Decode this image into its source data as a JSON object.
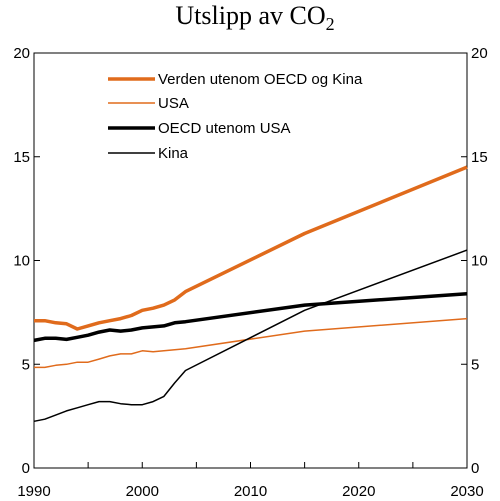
{
  "chart_data": {
    "type": "line",
    "title": "Utslipp av CO",
    "title_subscript": "2",
    "xlabel": "",
    "ylabel": "",
    "xlim": [
      1990,
      2030
    ],
    "ylim": [
      0,
      20
    ],
    "x_ticks": [
      1990,
      2000,
      2010,
      2020,
      2030
    ],
    "y_ticks": [
      0,
      5,
      10,
      15,
      20
    ],
    "grid": false,
    "legend_position": "top-left",
    "series": [
      {
        "name": "Verden utenom OECD og Kina",
        "color": "#e06b1c",
        "weight": "thick",
        "points": [
          [
            1990,
            7.1
          ],
          [
            1991,
            7.1
          ],
          [
            1992,
            7.0
          ],
          [
            1993,
            6.95
          ],
          [
            1994,
            6.7
          ],
          [
            1995,
            6.85
          ],
          [
            1996,
            7.0
          ],
          [
            1997,
            7.1
          ],
          [
            1998,
            7.2
          ],
          [
            1999,
            7.35
          ],
          [
            2000,
            7.6
          ],
          [
            2001,
            7.7
          ],
          [
            2002,
            7.85
          ],
          [
            2003,
            8.1
          ],
          [
            2004,
            8.5
          ],
          [
            2015,
            11.3
          ],
          [
            2030,
            14.5
          ]
        ]
      },
      {
        "name": "USA",
        "color": "#e06b1c",
        "weight": "thin",
        "points": [
          [
            1990,
            4.85
          ],
          [
            1991,
            4.85
          ],
          [
            1992,
            4.95
          ],
          [
            1993,
            5.0
          ],
          [
            1994,
            5.1
          ],
          [
            1995,
            5.1
          ],
          [
            1996,
            5.25
          ],
          [
            1997,
            5.4
          ],
          [
            1998,
            5.5
          ],
          [
            1999,
            5.5
          ],
          [
            2000,
            5.65
          ],
          [
            2001,
            5.6
          ],
          [
            2002,
            5.65
          ],
          [
            2003,
            5.7
          ],
          [
            2004,
            5.75
          ],
          [
            2015,
            6.6
          ],
          [
            2030,
            7.2
          ]
        ]
      },
      {
        "name": "OECD utenom USA",
        "color": "#000000",
        "weight": "thick",
        "points": [
          [
            1990,
            6.15
          ],
          [
            1991,
            6.25
          ],
          [
            1992,
            6.25
          ],
          [
            1993,
            6.2
          ],
          [
            1994,
            6.3
          ],
          [
            1995,
            6.4
          ],
          [
            1996,
            6.55
          ],
          [
            1997,
            6.65
          ],
          [
            1998,
            6.6
          ],
          [
            1999,
            6.65
          ],
          [
            2000,
            6.75
          ],
          [
            2001,
            6.8
          ],
          [
            2002,
            6.85
          ],
          [
            2003,
            7.0
          ],
          [
            2004,
            7.05
          ],
          [
            2015,
            7.85
          ],
          [
            2030,
            8.4
          ]
        ]
      },
      {
        "name": "Kina",
        "color": "#000000",
        "weight": "thin",
        "points": [
          [
            1990,
            2.25
          ],
          [
            1991,
            2.35
          ],
          [
            1992,
            2.55
          ],
          [
            1993,
            2.75
          ],
          [
            1994,
            2.9
          ],
          [
            1995,
            3.05
          ],
          [
            1996,
            3.2
          ],
          [
            1997,
            3.2
          ],
          [
            1998,
            3.1
          ],
          [
            1999,
            3.05
          ],
          [
            2000,
            3.05
          ],
          [
            2001,
            3.2
          ],
          [
            2002,
            3.45
          ],
          [
            2003,
            4.1
          ],
          [
            2004,
            4.7
          ],
          [
            2015,
            7.6
          ],
          [
            2030,
            10.5
          ]
        ]
      }
    ]
  }
}
